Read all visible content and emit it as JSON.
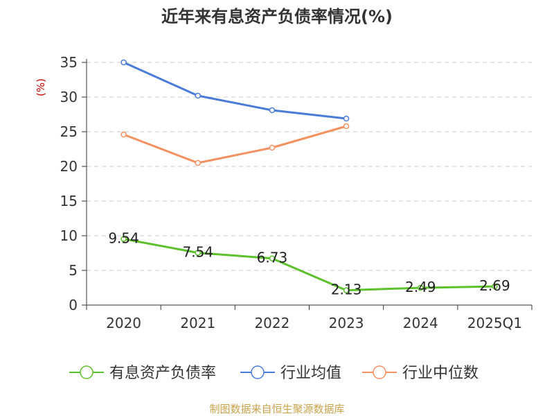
{
  "chart_data": {
    "type": "line",
    "title": "近年来有息资产负债率情况(%)",
    "ylabel": "(%)",
    "xlabel": "",
    "categories": [
      "2020",
      "2021",
      "2022",
      "2023",
      "2024",
      "2025Q1"
    ],
    "ylim": [
      0,
      35
    ],
    "yticks": [
      0,
      5,
      10,
      15,
      20,
      25,
      30,
      35
    ],
    "grid": true,
    "legend_position": "bottom",
    "series": [
      {
        "name": "有息资产负债率",
        "color": "#5cc12a",
        "values": [
          9.54,
          7.54,
          6.73,
          2.13,
          2.49,
          2.69
        ],
        "labels": [
          "9.54",
          "7.54",
          "6.73",
          "2.13",
          "2.49",
          "2.69"
        ]
      },
      {
        "name": "行业均值",
        "color": "#4a7bd8",
        "values": [
          35.0,
          30.2,
          28.1,
          26.9,
          null,
          null
        ],
        "labels": []
      },
      {
        "name": "行业中位数",
        "color": "#f39160",
        "values": [
          24.6,
          20.5,
          22.7,
          25.8,
          null,
          null
        ],
        "labels": []
      }
    ]
  },
  "footer": {
    "source": "制图数据来自恒生聚源数据库"
  }
}
